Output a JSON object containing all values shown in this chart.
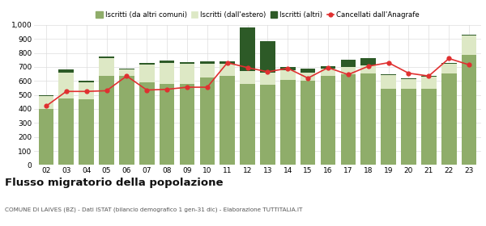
{
  "years": [
    "02",
    "03",
    "04",
    "05",
    "06",
    "07",
    "08",
    "09",
    "10",
    "11",
    "12",
    "13",
    "14",
    "15",
    "16",
    "17",
    "18",
    "19",
    "20",
    "21",
    "22",
    "23"
  ],
  "iscritti_comuni": [
    400,
    475,
    470,
    635,
    635,
    590,
    580,
    580,
    625,
    635,
    580,
    570,
    610,
    600,
    635,
    650,
    655,
    545,
    545,
    545,
    655,
    785
  ],
  "iscritti_estero": [
    90,
    185,
    120,
    125,
    45,
    125,
    150,
    145,
    100,
    90,
    90,
    90,
    65,
    60,
    55,
    50,
    55,
    95,
    70,
    85,
    65,
    140
  ],
  "iscritti_altri": [
    10,
    20,
    10,
    15,
    10,
    15,
    15,
    10,
    15,
    15,
    310,
    225,
    25,
    25,
    15,
    50,
    50,
    5,
    5,
    5,
    10,
    5
  ],
  "cancellati": [
    420,
    525,
    525,
    530,
    635,
    535,
    540,
    555,
    555,
    730,
    695,
    665,
    690,
    620,
    695,
    645,
    705,
    730,
    655,
    635,
    760,
    715
  ],
  "color_comuni": "#8fad6a",
  "color_estero": "#dde8c5",
  "color_altri": "#2d5a27",
  "color_cancellati": "#e03030",
  "ylim": [
    0,
    1000
  ],
  "yticks": [
    0,
    100,
    200,
    300,
    400,
    500,
    600,
    700,
    800,
    900,
    1000
  ],
  "ytick_labels": [
    "0",
    "100",
    "200",
    "300",
    "400",
    "500",
    "600",
    "700",
    "800",
    "900",
    "1,000"
  ],
  "title": "Flusso migratorio della popolazione",
  "subtitle": "COMUNE DI LAIVES (BZ) - Dati ISTAT (bilancio demografico 1 gen-31 dic) - Elaborazione TUTTITALIA.IT",
  "legend_labels": [
    "Iscritti (da altri comuni)",
    "Iscritti (dall'estero)",
    "Iscritti (altri)",
    "Cancellati dall'Anagrafe"
  ],
  "bg_color": "#ffffff",
  "grid_color": "#dddddd"
}
